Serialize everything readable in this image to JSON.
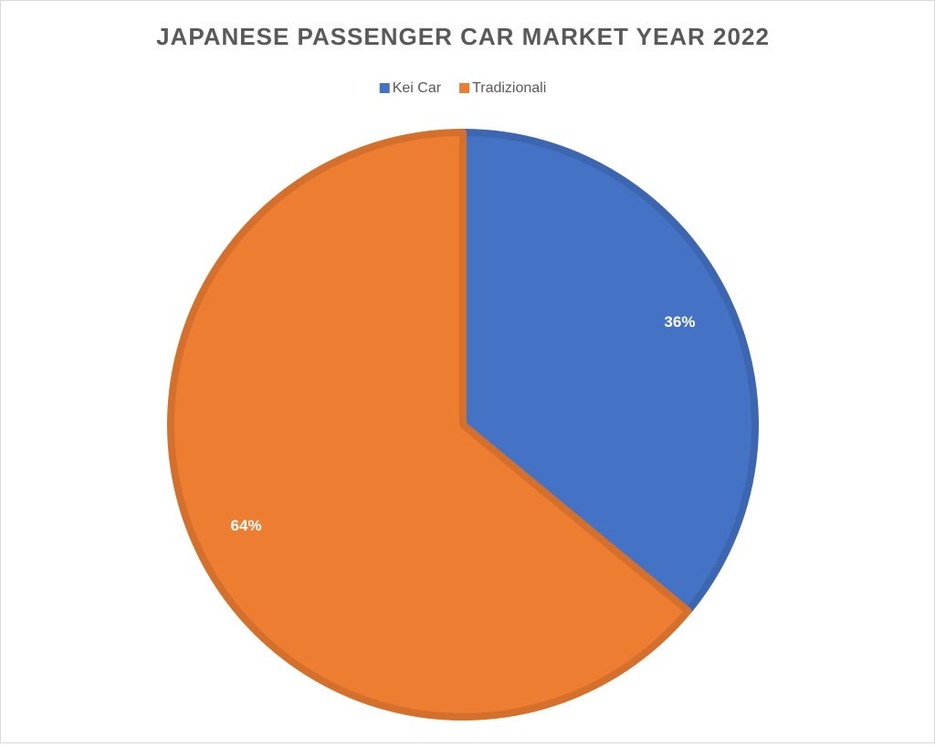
{
  "chart_data": {
    "type": "pie",
    "title": "JAPANESE PASSENGER CAR MARKET YEAR 2022",
    "categories": [
      "Kei Car",
      "Tradizionali"
    ],
    "values": [
      36,
      64
    ],
    "value_labels": [
      "36%",
      "64%"
    ],
    "colors": [
      "#4472c4",
      "#ed7d31"
    ],
    "legend": "top"
  }
}
